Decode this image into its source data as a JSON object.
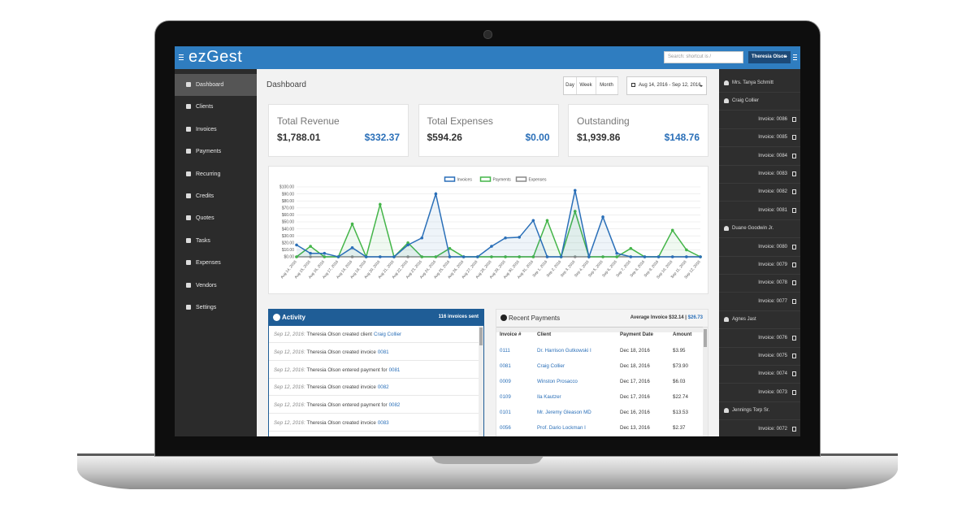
{
  "nav": {
    "logo": "ezGest",
    "search": "Search: shortcut is /",
    "user": "Theresia Olson"
  },
  "sidebar": [
    "Dashboard",
    "Clients",
    "Invoices",
    "Payments",
    "Recurring",
    "Credits",
    "Quotes",
    "Tasks",
    "Expenses",
    "Vendors",
    "Settings"
  ],
  "dashboard": {
    "title": "Dashboard",
    "ranges": [
      "Day",
      "Week",
      "Month"
    ],
    "date_range": "Aug 14, 2016 - Sep 12, 2016",
    "cards": [
      {
        "title": "Total Revenue",
        "total": "$1,788.01",
        "period": "$332.37"
      },
      {
        "title": "Total Expenses",
        "total": "$594.26",
        "period": "$0.00"
      },
      {
        "title": "Outstanding",
        "total": "$1,939.86",
        "period": "$148.76"
      }
    ]
  },
  "chart_data": {
    "type": "line",
    "categories": [
      "Aug 14, 2016",
      "Aug 15, 2016",
      "Aug 16, 2016",
      "Aug 17, 2016",
      "Aug 18, 2016",
      "Aug 19, 2016",
      "Aug 20, 2016",
      "Aug 21, 2016",
      "Aug 22, 2016",
      "Aug 23, 2016",
      "Aug 24, 2016",
      "Aug 25, 2016",
      "Aug 26, 2016",
      "Aug 27, 2016",
      "Aug 28, 2016",
      "Aug 29, 2016",
      "Aug 30, 2016",
      "Aug 31, 2016",
      "Sep 1, 2016",
      "Sep 2, 2016",
      "Sep 3, 2016",
      "Sep 4, 2016",
      "Sep 5, 2016",
      "Sep 6, 2016",
      "Sep 7, 2016",
      "Sep 8, 2016",
      "Sep 9, 2016",
      "Sep 10, 2016",
      "Sep 11, 2016",
      "Sep 12, 2016"
    ],
    "series": [
      {
        "name": "Invoices",
        "color": "#2a6fb8",
        "values": [
          17,
          5,
          5,
          0,
          13,
          0,
          0,
          0,
          17,
          27,
          90,
          0,
          0,
          0,
          15,
          27,
          28,
          52,
          0,
          0,
          95,
          0,
          57,
          5,
          0,
          0,
          0,
          0,
          0,
          0
        ]
      },
      {
        "name": "Payments",
        "color": "#44b549",
        "values": [
          0,
          15,
          0,
          0,
          47,
          0,
          75,
          0,
          20,
          0,
          0,
          12,
          0,
          0,
          0,
          0,
          0,
          0,
          52,
          0,
          65,
          0,
          0,
          0,
          12,
          0,
          0,
          38,
          10,
          0
        ]
      },
      {
        "name": "Expenses",
        "color": "#8a8a8a",
        "values": [
          0,
          0,
          0,
          0,
          0,
          0,
          0,
          0,
          0,
          0,
          0,
          0,
          0,
          0,
          0,
          0,
          0,
          0,
          0,
          0,
          0,
          0,
          0,
          0,
          0,
          0,
          0,
          0,
          0,
          0
        ]
      }
    ],
    "ylim": [
      0,
      100
    ],
    "yticks": [
      {
        "value": 0,
        "label": "$0.00"
      },
      {
        "value": 10,
        "label": "$10.00"
      },
      {
        "value": 20,
        "label": "$20.00"
      },
      {
        "value": 30,
        "label": "$30.00"
      },
      {
        "value": 40,
        "label": "$40.00"
      },
      {
        "value": 50,
        "label": "$50.00"
      },
      {
        "value": 60,
        "label": "$60.00"
      },
      {
        "value": 70,
        "label": "$70.00"
      },
      {
        "value": 80,
        "label": "$80.00"
      },
      {
        "value": 90,
        "label": "$90.00"
      },
      {
        "value": 100,
        "label": "$100.00"
      }
    ],
    "grid": true,
    "legend": "top"
  },
  "activity": {
    "title": "Activity",
    "summary": "116 invoices sent",
    "items": [
      {
        "date": "Sep 12, 2016:",
        "text": "Theresia Olson created client",
        "link": "Craig Collier"
      },
      {
        "date": "Sep 12, 2016:",
        "text": "Theresia Olson created invoice",
        "link": "0081"
      },
      {
        "date": "Sep 12, 2016:",
        "text": "Theresia Olson entered payment for",
        "link": "0081"
      },
      {
        "date": "Sep 12, 2016:",
        "text": "Theresia Olson created invoice",
        "link": "0082"
      },
      {
        "date": "Sep 12, 2016:",
        "text": "Theresia Olson entered payment for",
        "link": "0082"
      },
      {
        "date": "Sep 12, 2016:",
        "text": "Theresia Olson created invoice",
        "link": "0083"
      }
    ]
  },
  "payments": {
    "title": "Recent Payments",
    "average": "Average Invoice $32.14 |",
    "average_value": "$26.73",
    "columns": [
      "Invoice #",
      "Client",
      "Payment Date",
      "Amount"
    ],
    "rows": [
      [
        "0111",
        "Dr. Harrison Gutkowski I",
        "Dec 18, 2016",
        "$3.95"
      ],
      [
        "0081",
        "Craig Collier",
        "Dec 18, 2016",
        "$73.90"
      ],
      [
        "0009",
        "Winston Prosacco",
        "Dec 17, 2016",
        "$6.03"
      ],
      [
        "0109",
        "Ila Kautzer",
        "Dec 17, 2016",
        "$22.74"
      ],
      [
        "0101",
        "Mr. Jeremy Gleason MD",
        "Dec 16, 2016",
        "$13.53"
      ],
      [
        "0056",
        "Prof. Dario Lockman I",
        "Dec 13, 2016",
        "$2.37"
      ]
    ]
  },
  "right_panel": [
    {
      "client": "Mrs. Tanya Schmitt",
      "invoices": []
    },
    {
      "client": "Craig Collier",
      "invoices": [
        "Invoice: 0086",
        "Invoice: 0085",
        "Invoice: 0084",
        "Invoice: 0083",
        "Invoice: 0082",
        "Invoice: 0081"
      ]
    },
    {
      "client": "Duane Goodwin Jr.",
      "invoices": [
        "Invoice: 0080",
        "Invoice: 0079",
        "Invoice: 0078",
        "Invoice: 0077"
      ]
    },
    {
      "client": "Agnes Jast",
      "invoices": [
        "Invoice: 0076",
        "Invoice: 0075",
        "Invoice: 0074",
        "Invoice: 0073"
      ]
    },
    {
      "client": "Jennings Torp Sr.",
      "invoices": [
        "Invoice: 0072"
      ]
    }
  ]
}
